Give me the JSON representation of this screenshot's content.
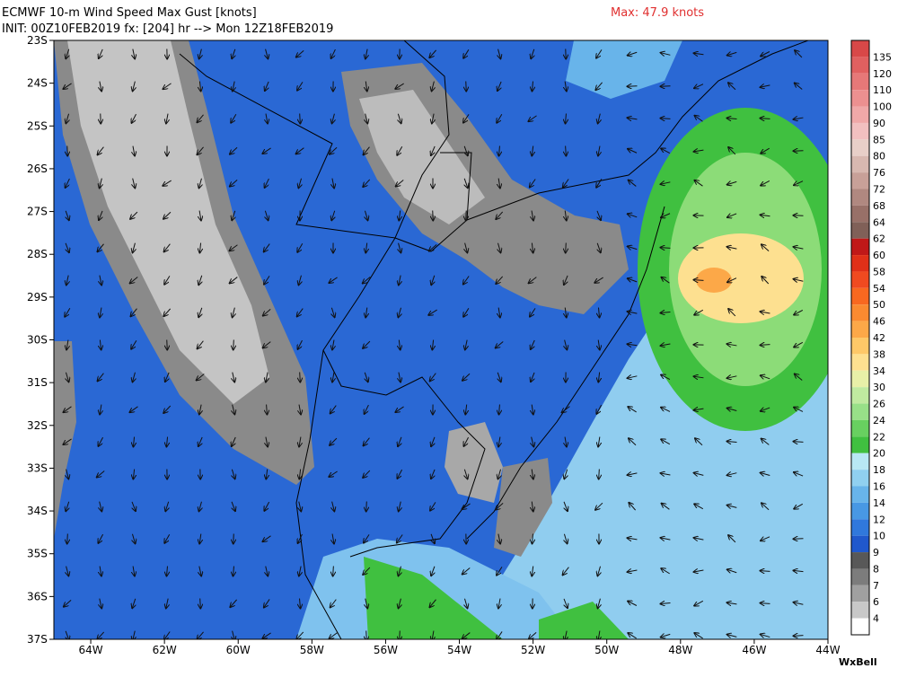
{
  "header": {
    "title": "ECMWF 10-m Wind Speed Max Gust [knots]",
    "init": "INIT: 00Z10FEB2019 fx: [204] hr --> Mon 12Z18FEB2019",
    "max": "Max: 47.9 knots"
  },
  "map": {
    "lat_labels": [
      "23S",
      "24S",
      "25S",
      "26S",
      "27S",
      "28S",
      "29S",
      "30S",
      "31S",
      "32S",
      "33S",
      "34S",
      "35S",
      "36S",
      "37S"
    ],
    "lon_labels": [
      "64W",
      "62W",
      "60W",
      "58W",
      "56W",
      "54W",
      "52W",
      "50W",
      "48W",
      "46W",
      "44W"
    ]
  },
  "colorbar": {
    "labels": [
      135,
      120,
      110,
      100,
      90,
      85,
      80,
      76,
      72,
      68,
      64,
      62,
      60,
      58,
      54,
      50,
      46,
      42,
      38,
      34,
      30,
      26,
      24,
      22,
      20,
      18,
      16,
      14,
      12,
      10,
      9,
      8,
      7,
      6,
      4
    ],
    "colors": [
      "#d84848",
      "#e06060",
      "#e67878",
      "#ec9090",
      "#f0a8a8",
      "#f2c0c0",
      "#e8cfc8",
      "#d8b8b0",
      "#c8a098",
      "#b08880",
      "#987068",
      "#806058",
      "#c01818",
      "#e03018",
      "#f04a20",
      "#f86820",
      "#fa8a30",
      "#fca848",
      "#fdc868",
      "#fde090",
      "#e8f0a8",
      "#c0eaa0",
      "#98e088",
      "#68d060",
      "#40c040",
      "#b8e8f4",
      "#90d0f0",
      "#68b4ea",
      "#4898e4",
      "#3078dc",
      "#2058cc",
      "#585858",
      "#7c7c7c",
      "#a0a0a0",
      "#c8c8c8",
      "#ffffff"
    ]
  },
  "logo": "WxBell"
}
